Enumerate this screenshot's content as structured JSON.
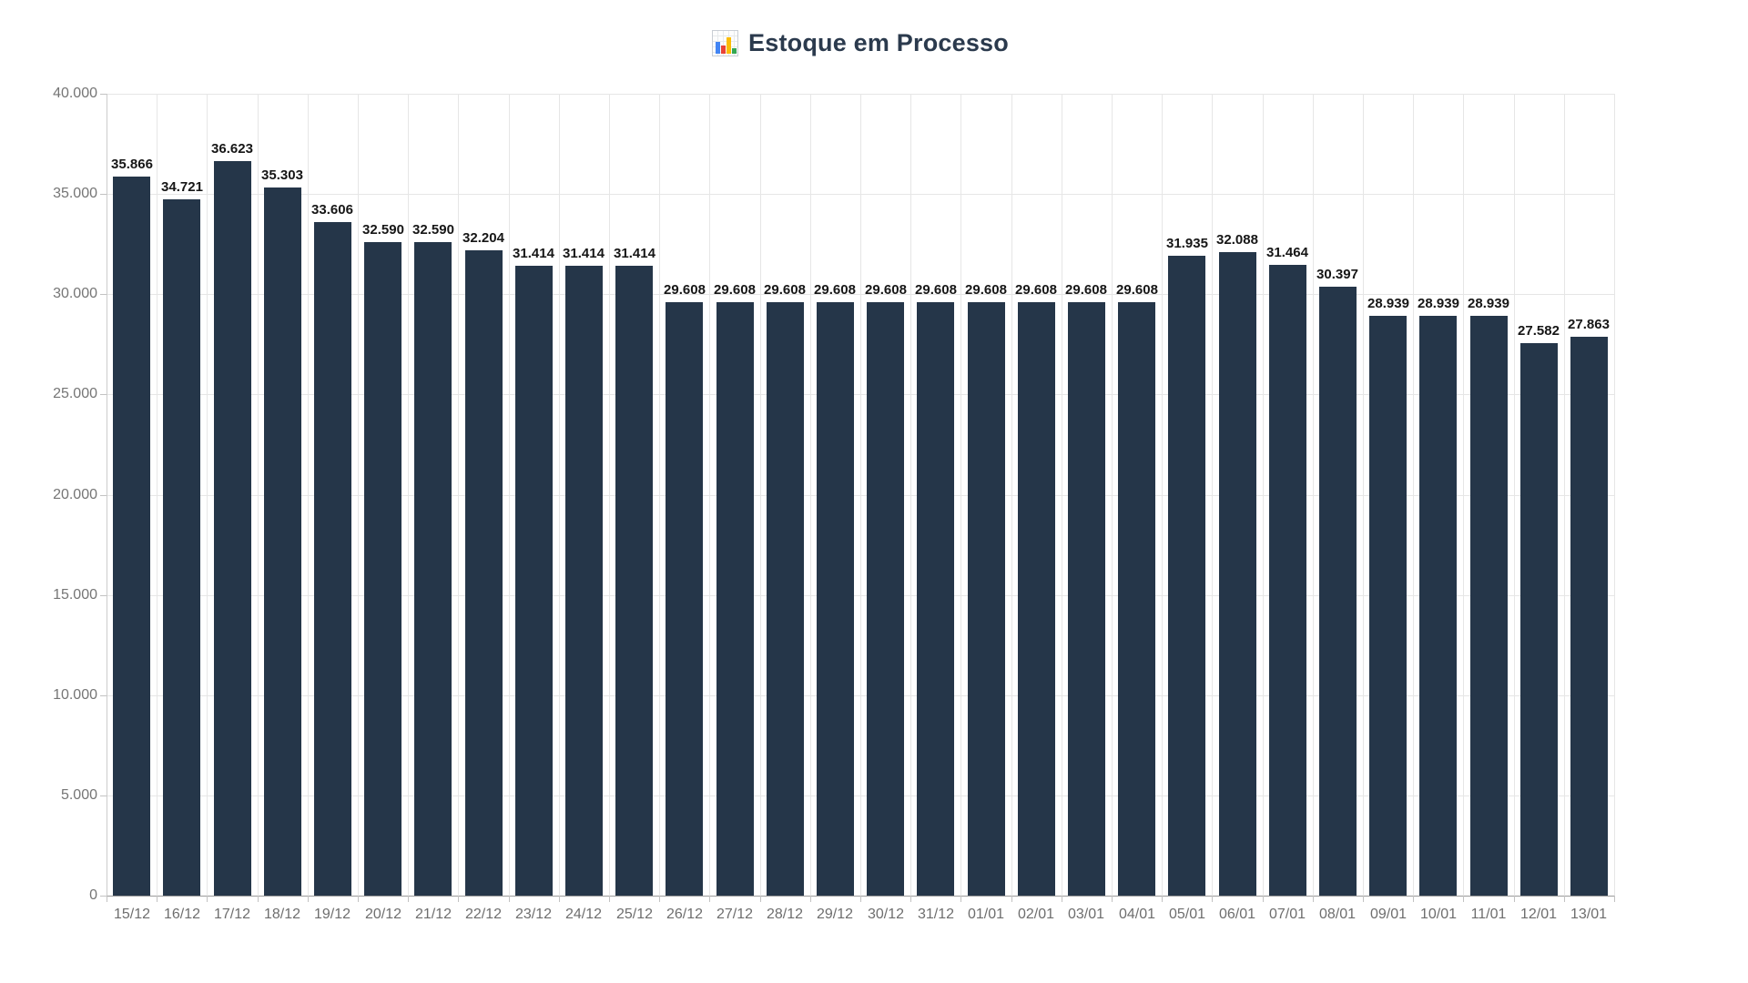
{
  "header": {
    "icon": "bar-chart-icon",
    "title": "Estoque em Processo"
  },
  "chart_data": {
    "type": "bar",
    "title": "Estoque em Processo",
    "categories": [
      "15/12",
      "16/12",
      "17/12",
      "18/12",
      "19/12",
      "20/12",
      "21/12",
      "22/12",
      "23/12",
      "24/12",
      "25/12",
      "26/12",
      "27/12",
      "28/12",
      "29/12",
      "30/12",
      "31/12",
      "01/01",
      "02/01",
      "03/01",
      "04/01",
      "05/01",
      "06/01",
      "07/01",
      "08/01",
      "09/01",
      "10/01",
      "11/01",
      "12/01",
      "13/01"
    ],
    "values": [
      35866,
      34721,
      36623,
      35303,
      33606,
      32590,
      32590,
      32204,
      31414,
      31414,
      31414,
      29608,
      29608,
      29608,
      29608,
      29608,
      29608,
      29608,
      29608,
      29608,
      29608,
      31935,
      32088,
      31464,
      30397,
      28939,
      28939,
      28939,
      27582,
      27863
    ],
    "value_labels": [
      "35.866",
      "34.721",
      "36.623",
      "35.303",
      "33.606",
      "32.590",
      "32.590",
      "32.204",
      "31.414",
      "31.414",
      "31.414",
      "29.608",
      "29.608",
      "29.608",
      "29.608",
      "29.608",
      "29.608",
      "29.608",
      "29.608",
      "29.608",
      "29.608",
      "31.935",
      "32.088",
      "31.464",
      "30.397",
      "28.939",
      "28.939",
      "28.939",
      "27.582",
      "27.863"
    ],
    "y_ticks": [
      {
        "value": 40000,
        "label": "40.000"
      },
      {
        "value": 35000,
        "label": "35.000"
      },
      {
        "value": 30000,
        "label": "30.000"
      },
      {
        "value": 25000,
        "label": "25.000"
      },
      {
        "value": 20000,
        "label": "20.000"
      },
      {
        "value": 15000,
        "label": "15.000"
      },
      {
        "value": 10000,
        "label": "10.000"
      },
      {
        "value": 5000,
        "label": "5.000"
      },
      {
        "value": 0,
        "label": "0"
      }
    ],
    "ylim": [
      0,
      40000
    ],
    "xlabel": "",
    "ylabel": "",
    "grid": true,
    "legend": "none",
    "style": {
      "bar_color": "#253649",
      "title_color": "#2b3a4d",
      "value_label_color": "#161616",
      "axis_label_color": "#757575",
      "x_label_color": "#6e6e6e",
      "grid_color": "#e6e6e6",
      "axis_line_color": "#9a9a9a",
      "tick_color": "#c2c2c2",
      "background": "#ffffff"
    }
  }
}
